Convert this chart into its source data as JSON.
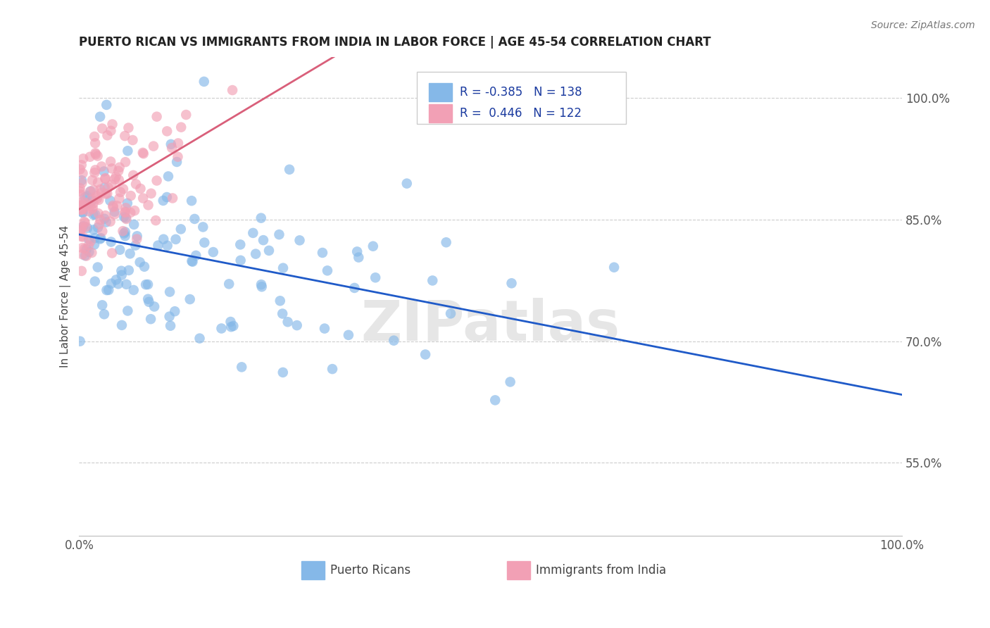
{
  "title": "PUERTO RICAN VS IMMIGRANTS FROM INDIA IN LABOR FORCE | AGE 45-54 CORRELATION CHART",
  "source": "Source: ZipAtlas.com",
  "ylabel": "In Labor Force | Age 45-54",
  "xlim": [
    0.0,
    1.0
  ],
  "ylim": [
    0.46,
    1.05
  ],
  "blue_R": -0.385,
  "blue_N": 138,
  "pink_R": 0.446,
  "pink_N": 122,
  "blue_color": "#85b8e8",
  "pink_color": "#f2a0b5",
  "blue_line_color": "#1f5ac8",
  "pink_line_color": "#d95f7a",
  "right_yticks": [
    0.55,
    0.7,
    0.85,
    1.0
  ],
  "right_yticklabels": [
    "55.0%",
    "70.0%",
    "85.0%",
    "100.0%"
  ],
  "legend_label_blue": "Puerto Ricans",
  "legend_label_pink": "Immigrants from India",
  "watermark_text": "ZIPatlas",
  "seed": 42
}
